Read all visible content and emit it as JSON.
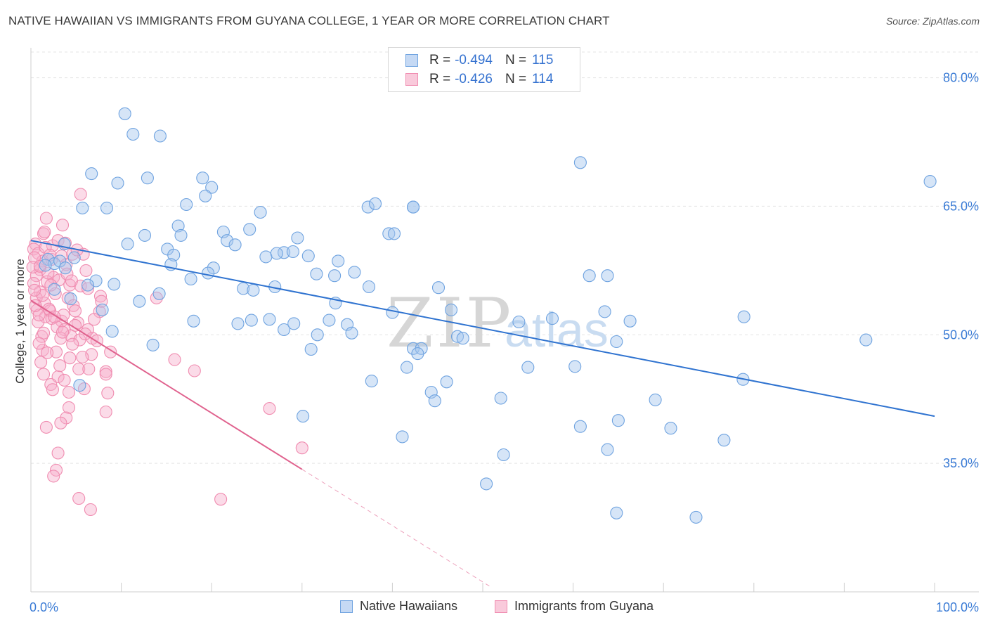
{
  "title": "NATIVE HAWAIIAN VS IMMIGRANTS FROM GUYANA COLLEGE, 1 YEAR OR MORE CORRELATION CHART",
  "source": "Source: ZipAtlas.com",
  "watermark": {
    "zip": "ZIP",
    "atlas": "atlas"
  },
  "legend_top": [
    {
      "r_label": "R =",
      "r_value": "-0.494",
      "n_label": "N =",
      "n_value": "115",
      "color": "#6fa3e0"
    },
    {
      "r_label": "R =",
      "r_value": "-0.426",
      "n_label": "N =",
      "n_value": "114",
      "color": "#f08cb0"
    }
  ],
  "legend_bottom": [
    {
      "label": "Native Hawaiians",
      "color": "#6fa3e0"
    },
    {
      "label": "Immigrants from Guyana",
      "color": "#f08cb0"
    }
  ],
  "chart_data": {
    "type": "scatter",
    "title": "NATIVE HAWAIIAN VS IMMIGRANTS FROM GUYANA COLLEGE, 1 YEAR OR MORE CORRELATION CHART",
    "xlabel": "",
    "ylabel": "College, 1 year or more",
    "xlim": [
      0,
      100
    ],
    "ylim": [
      20,
      83
    ],
    "x_tick_labels": [
      "0.0%",
      "100.0%"
    ],
    "y_ticks": [
      35,
      50,
      65,
      80
    ],
    "y_tick_labels": [
      "35.0%",
      "50.0%",
      "65.0%",
      "80.0%"
    ],
    "grid": true,
    "legend_position": "top-center",
    "series": [
      {
        "name": "Native Hawaiians",
        "color": "#6fa3e0",
        "line_color": "#2f73d0",
        "trend": {
          "x0": 0,
          "y0": 61.0,
          "x1": 100,
          "y1": 40.5,
          "dash_to": null
        },
        "points": [
          [
            10.4,
            75.8
          ],
          [
            11.3,
            73.4
          ],
          [
            14.3,
            73.2
          ],
          [
            6.7,
            68.8
          ],
          [
            9.6,
            67.7
          ],
          [
            12.9,
            68.3
          ],
          [
            19.0,
            68.3
          ],
          [
            20.0,
            67.2
          ],
          [
            5.7,
            64.8
          ],
          [
            8.4,
            64.8
          ],
          [
            17.2,
            65.2
          ],
          [
            19.3,
            66.2
          ],
          [
            16.3,
            62.7
          ],
          [
            16.6,
            61.6
          ],
          [
            21.3,
            62.0
          ],
          [
            21.7,
            61.0
          ],
          [
            22.6,
            60.5
          ],
          [
            24.2,
            62.3
          ],
          [
            25.4,
            64.3
          ],
          [
            12.6,
            61.6
          ],
          [
            10.7,
            60.6
          ],
          [
            3.7,
            60.6
          ],
          [
            15.1,
            60.0
          ],
          [
            15.8,
            59.3
          ],
          [
            1.9,
            58.8
          ],
          [
            2.6,
            58.3
          ],
          [
            3.2,
            58.6
          ],
          [
            4.8,
            59.0
          ],
          [
            1.6,
            58.1
          ],
          [
            15.5,
            58.2
          ],
          [
            20.2,
            57.8
          ],
          [
            19.6,
            57.2
          ],
          [
            26.0,
            59.1
          ],
          [
            28.0,
            59.6
          ],
          [
            29.0,
            59.7
          ],
          [
            27.2,
            59.5
          ],
          [
            29.5,
            61.3
          ],
          [
            30.7,
            59.2
          ],
          [
            34.0,
            58.6
          ],
          [
            33.6,
            56.9
          ],
          [
            31.6,
            57.1
          ],
          [
            35.8,
            57.3
          ],
          [
            37.3,
            64.9
          ],
          [
            38.1,
            65.3
          ],
          [
            39.6,
            61.8
          ],
          [
            40.2,
            61.8
          ],
          [
            42.3,
            64.9
          ],
          [
            3.8,
            57.8
          ],
          [
            7.2,
            56.3
          ],
          [
            9.2,
            55.9
          ],
          [
            6.3,
            55.8
          ],
          [
            2.6,
            55.3
          ],
          [
            17.7,
            56.5
          ],
          [
            23.5,
            55.4
          ],
          [
            24.6,
            55.2
          ],
          [
            27.0,
            55.6
          ],
          [
            37.4,
            55.6
          ],
          [
            45.1,
            55.5
          ],
          [
            12.0,
            53.9
          ],
          [
            14.2,
            54.8
          ],
          [
            4.4,
            54.2
          ],
          [
            7.9,
            52.9
          ],
          [
            18.0,
            51.6
          ],
          [
            22.9,
            51.3
          ],
          [
            24.4,
            51.7
          ],
          [
            26.4,
            51.8
          ],
          [
            28.0,
            50.6
          ],
          [
            29.1,
            51.3
          ],
          [
            33.0,
            51.7
          ],
          [
            33.7,
            53.7
          ],
          [
            35.0,
            51.2
          ],
          [
            35.5,
            50.2
          ],
          [
            40.0,
            52.6
          ],
          [
            46.5,
            52.9
          ],
          [
            9.0,
            50.4
          ],
          [
            13.5,
            48.8
          ],
          [
            31.7,
            50.0
          ],
          [
            31.0,
            48.3
          ],
          [
            42.3,
            48.4
          ],
          [
            43.2,
            48.4
          ],
          [
            42.8,
            47.8
          ],
          [
            47.2,
            49.8
          ],
          [
            47.8,
            49.6
          ],
          [
            54.0,
            51.5
          ],
          [
            57.7,
            51.9
          ],
          [
            61.8,
            56.9
          ],
          [
            63.5,
            52.7
          ],
          [
            63.8,
            56.9
          ],
          [
            64.8,
            49.2
          ],
          [
            66.3,
            51.6
          ],
          [
            78.9,
            52.1
          ],
          [
            92.4,
            49.4
          ],
          [
            41.6,
            46.2
          ],
          [
            46.0,
            44.5
          ],
          [
            44.3,
            43.3
          ],
          [
            44.7,
            42.3
          ],
          [
            37.7,
            44.6
          ],
          [
            5.4,
            44.1
          ],
          [
            30.1,
            40.5
          ],
          [
            55.0,
            46.2
          ],
          [
            60.2,
            46.3
          ],
          [
            65.0,
            40.0
          ],
          [
            69.1,
            42.4
          ],
          [
            52.0,
            42.6
          ],
          [
            60.8,
            39.3
          ],
          [
            78.8,
            44.8
          ],
          [
            76.7,
            37.7
          ],
          [
            70.8,
            39.1
          ],
          [
            41.1,
            38.1
          ],
          [
            52.3,
            36.0
          ],
          [
            63.8,
            36.6
          ],
          [
            50.4,
            32.6
          ],
          [
            64.8,
            29.2
          ],
          [
            73.6,
            28.7
          ],
          [
            60.8,
            70.1
          ],
          [
            99.5,
            67.9
          ],
          [
            42.3,
            64.9
          ]
        ]
      },
      {
        "name": "Immigrants from Guyana",
        "color": "#f08cb0",
        "line_color": "#e0628e",
        "trend": {
          "x0": 0,
          "y0": 54.0,
          "x1": 30.0,
          "y1": 34.3,
          "dash_to": {
            "x": 51.0,
            "y": 20.5
          }
        },
        "points": [
          [
            5.5,
            66.4
          ],
          [
            1.7,
            63.6
          ],
          [
            3.5,
            62.8
          ],
          [
            1.4,
            61.8
          ],
          [
            0.5,
            60.6
          ],
          [
            2.4,
            60.4
          ],
          [
            0.3,
            60.0
          ],
          [
            0.8,
            59.5
          ],
          [
            3.4,
            59.2
          ],
          [
            5.8,
            59.4
          ],
          [
            4.6,
            59.4
          ],
          [
            1.3,
            58.6
          ],
          [
            2.3,
            58.8
          ],
          [
            1.0,
            57.6
          ],
          [
            3.9,
            58.2
          ],
          [
            6.1,
            57.5
          ],
          [
            0.6,
            56.9
          ],
          [
            2.5,
            56.7
          ],
          [
            1.8,
            56.2
          ],
          [
            0.3,
            56.0
          ],
          [
            4.3,
            55.8
          ],
          [
            5.5,
            55.7
          ],
          [
            1.0,
            55.0
          ],
          [
            6.3,
            55.4
          ],
          [
            2.7,
            54.8
          ],
          [
            4.1,
            54.3
          ],
          [
            7.7,
            54.5
          ],
          [
            13.9,
            54.3
          ],
          [
            1.5,
            53.7
          ],
          [
            4.7,
            53.4
          ],
          [
            0.7,
            52.9
          ],
          [
            2.1,
            52.8
          ],
          [
            4.9,
            52.8
          ],
          [
            7.6,
            52.7
          ],
          [
            1.6,
            52.1
          ],
          [
            2.3,
            51.9
          ],
          [
            3.4,
            51.6
          ],
          [
            5.2,
            51.4
          ],
          [
            0.8,
            51.5
          ],
          [
            2.9,
            50.9
          ],
          [
            3.7,
            50.6
          ],
          [
            4.4,
            49.9
          ],
          [
            6.3,
            50.6
          ],
          [
            1.2,
            49.8
          ],
          [
            3.3,
            49.6
          ],
          [
            5.4,
            49.4
          ],
          [
            6.8,
            49.6
          ],
          [
            7.3,
            49.3
          ],
          [
            1.3,
            48.2
          ],
          [
            8.8,
            48.0
          ],
          [
            6.7,
            47.7
          ],
          [
            4.3,
            47.3
          ],
          [
            15.9,
            47.1
          ],
          [
            1.1,
            46.8
          ],
          [
            5.3,
            46.0
          ],
          [
            8.3,
            45.7
          ],
          [
            18.1,
            45.8
          ],
          [
            8.3,
            45.4
          ],
          [
            1.4,
            45.4
          ],
          [
            3.0,
            45.1
          ],
          [
            3.7,
            44.7
          ],
          [
            2.2,
            44.2
          ],
          [
            5.9,
            43.7
          ],
          [
            4.2,
            43.3
          ],
          [
            8.5,
            43.2
          ],
          [
            4.2,
            41.5
          ],
          [
            8.3,
            41.0
          ],
          [
            26.4,
            41.4
          ],
          [
            3.9,
            40.3
          ],
          [
            3.3,
            39.7
          ],
          [
            1.7,
            39.2
          ],
          [
            3.0,
            36.2
          ],
          [
            30.0,
            36.8
          ],
          [
            2.8,
            34.2
          ],
          [
            2.5,
            33.5
          ],
          [
            5.3,
            30.9
          ],
          [
            21.0,
            30.8
          ],
          [
            6.6,
            29.6
          ],
          [
            0.4,
            59.0
          ],
          [
            1.9,
            57.2
          ],
          [
            3.1,
            56.4
          ],
          [
            0.6,
            54.3
          ],
          [
            2.0,
            53.0
          ],
          [
            3.6,
            52.3
          ],
          [
            4.9,
            51.1
          ],
          [
            1.4,
            50.2
          ],
          [
            2.8,
            48.0
          ],
          [
            6.0,
            50.1
          ],
          [
            0.9,
            52.3
          ],
          [
            2.2,
            55.8
          ],
          [
            4.0,
            57.1
          ],
          [
            0.2,
            57.9
          ],
          [
            1.6,
            60.2
          ],
          [
            3.0,
            61.0
          ],
          [
            5.1,
            59.9
          ],
          [
            0.5,
            53.4
          ],
          [
            1.3,
            54.6
          ],
          [
            2.6,
            52.1
          ],
          [
            3.5,
            50.3
          ],
          [
            4.6,
            48.9
          ],
          [
            5.7,
            47.4
          ],
          [
            6.4,
            46.0
          ],
          [
            7.0,
            51.8
          ],
          [
            0.9,
            49.0
          ],
          [
            1.8,
            47.9
          ],
          [
            3.2,
            46.4
          ],
          [
            2.4,
            43.6
          ],
          [
            7.8,
            53.9
          ],
          [
            1.0,
            58.0
          ],
          [
            2.1,
            59.3
          ],
          [
            3.8,
            60.7
          ],
          [
            4.5,
            56.3
          ],
          [
            0.4,
            55.2
          ],
          [
            1.5,
            62.0
          ]
        ]
      }
    ]
  }
}
